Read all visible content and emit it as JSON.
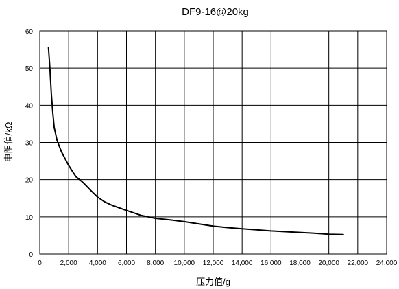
{
  "chart_data": {
    "type": "line",
    "title": "DF9-16@20kg",
    "xlabel": "压力值/g",
    "ylabel": "电阻值/kΩ",
    "xlim": [
      0,
      24000
    ],
    "ylim": [
      0,
      60
    ],
    "grid": true,
    "x_ticks": [
      "0",
      "2,000",
      "4,000",
      "6,000",
      "8,000",
      "10,000",
      "12,000",
      "14,000",
      "16,000",
      "18,000",
      "20,000",
      "22,000",
      "24,000"
    ],
    "y_ticks": [
      "0",
      "10",
      "20",
      "30",
      "40",
      "50",
      "60"
    ],
    "series": [
      {
        "x": [
          600,
          700,
          800,
          900,
          1000,
          1200,
          1500,
          2000,
          2500,
          3000,
          3500,
          4000,
          4500,
          5000,
          6000,
          7000,
          8000,
          9000,
          10000,
          11000,
          12000,
          13000,
          14000,
          15000,
          16000,
          17000,
          18000,
          19000,
          20000,
          21000
        ],
        "y": [
          55.5,
          50,
          43,
          38,
          34,
          30.5,
          27.5,
          23.8,
          20.8,
          19.2,
          17.2,
          15.3,
          14.0,
          13.1,
          11.7,
          10.4,
          9.6,
          9.2,
          8.7,
          8.1,
          7.5,
          7.1,
          6.8,
          6.5,
          6.2,
          6.0,
          5.8,
          5.6,
          5.3,
          5.2
        ]
      }
    ]
  }
}
